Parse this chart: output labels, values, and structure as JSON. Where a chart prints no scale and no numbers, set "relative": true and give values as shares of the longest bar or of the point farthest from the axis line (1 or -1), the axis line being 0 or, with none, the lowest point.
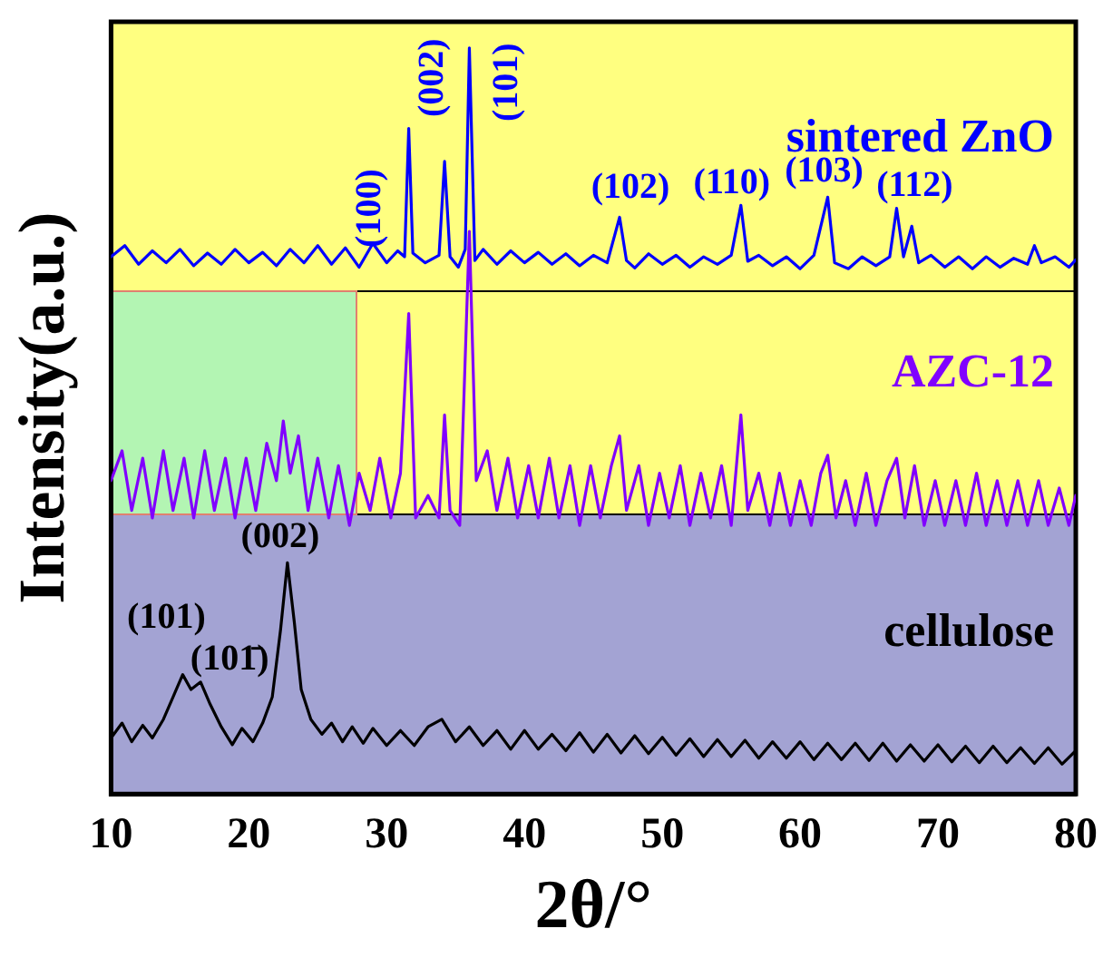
{
  "chart_data": {
    "type": "line",
    "relative": true,
    "xlabel": "2θ/°",
    "ylabel": "Intensity(a.u.)",
    "xlim": [
      10,
      80
    ],
    "xticks": [
      10,
      20,
      30,
      40,
      50,
      60,
      70,
      80
    ],
    "grid": false,
    "legend": false,
    "marker": "none",
    "line_style": "solid",
    "series": [
      {
        "name": "sintered ZnO",
        "color": "#0000ff",
        "x": [
          10,
          11,
          12,
          13,
          14,
          15,
          16,
          17,
          18,
          19,
          20,
          21,
          22,
          23,
          24,
          25,
          26,
          27,
          28,
          29,
          30,
          30.8,
          31.3,
          31.6,
          31.9,
          32.8,
          33.8,
          34.2,
          34.6,
          35.2,
          35.7,
          36.0,
          36.4,
          37,
          38,
          39,
          40,
          41,
          42,
          43,
          44,
          45,
          46,
          46.9,
          47.4,
          48,
          49,
          50,
          51,
          52,
          53,
          54,
          55,
          55.7,
          56.2,
          57,
          58,
          59,
          60,
          61,
          62.0,
          62.5,
          63.5,
          64.5,
          65.5,
          66.5,
          67.0,
          67.5,
          68.1,
          68.6,
          69.5,
          70.5,
          71.5,
          72.5,
          73.5,
          74.5,
          75.5,
          76.5,
          77,
          77.5,
          78.5,
          79.5,
          80
        ],
        "values": [
          0.72,
          0.735,
          0.71,
          0.728,
          0.712,
          0.73,
          0.708,
          0.725,
          0.71,
          0.73,
          0.712,
          0.726,
          0.708,
          0.73,
          0.712,
          0.735,
          0.71,
          0.732,
          0.706,
          0.738,
          0.712,
          0.728,
          0.72,
          0.892,
          0.725,
          0.712,
          0.722,
          0.848,
          0.72,
          0.706,
          0.73,
          1.0,
          0.715,
          0.73,
          0.71,
          0.728,
          0.712,
          0.726,
          0.71,
          0.724,
          0.708,
          0.722,
          0.712,
          0.773,
          0.715,
          0.705,
          0.724,
          0.71,
          0.722,
          0.706,
          0.72,
          0.71,
          0.722,
          0.789,
          0.714,
          0.722,
          0.708,
          0.72,
          0.704,
          0.722,
          0.8,
          0.712,
          0.704,
          0.72,
          0.708,
          0.72,
          0.785,
          0.72,
          0.761,
          0.712,
          0.722,
          0.706,
          0.72,
          0.704,
          0.72,
          0.706,
          0.718,
          0.71,
          0.735,
          0.712,
          0.72,
          0.706,
          0.716
        ]
      },
      {
        "name": "AZC-12",
        "color": "#8000ff",
        "x": [
          10,
          10.8,
          11.5,
          12.3,
          13,
          13.8,
          14.5,
          15.3,
          16,
          16.8,
          17.5,
          18.3,
          19,
          19.8,
          20.5,
          21.3,
          22,
          22.5,
          23,
          23.6,
          24.3,
          25,
          25.8,
          26.5,
          27.3,
          28,
          28.8,
          29.5,
          30.3,
          31,
          31.6,
          32.1,
          33,
          33.8,
          34.2,
          34.6,
          35.3,
          36.0,
          36.5,
          37.3,
          38,
          38.8,
          39.5,
          40.3,
          41,
          41.8,
          42.5,
          43.3,
          44,
          44.8,
          45.5,
          46.3,
          46.9,
          47.4,
          48.3,
          49,
          49.8,
          50.5,
          51.3,
          52,
          52.8,
          53.5,
          54.3,
          55,
          55.7,
          56.2,
          57,
          57.8,
          58.5,
          59.3,
          60,
          60.8,
          61.5,
          62.0,
          62.6,
          63.3,
          64,
          64.8,
          65.5,
          66.3,
          67.0,
          67.6,
          68.3,
          69,
          69.8,
          70.5,
          71.3,
          72,
          72.8,
          73.5,
          74.3,
          75,
          75.8,
          76.5,
          77.3,
          78,
          78.8,
          79.5,
          80
        ],
        "values": [
          0.42,
          0.46,
          0.38,
          0.45,
          0.37,
          0.46,
          0.38,
          0.45,
          0.37,
          0.46,
          0.38,
          0.45,
          0.37,
          0.45,
          0.38,
          0.47,
          0.42,
          0.5,
          0.43,
          0.48,
          0.38,
          0.45,
          0.37,
          0.44,
          0.36,
          0.43,
          0.38,
          0.45,
          0.37,
          0.43,
          0.644,
          0.37,
          0.4,
          0.37,
          0.508,
          0.38,
          0.36,
          0.754,
          0.42,
          0.46,
          0.38,
          0.45,
          0.37,
          0.44,
          0.37,
          0.45,
          0.37,
          0.44,
          0.36,
          0.44,
          0.37,
          0.44,
          0.48,
          0.38,
          0.44,
          0.36,
          0.43,
          0.37,
          0.44,
          0.36,
          0.43,
          0.37,
          0.44,
          0.36,
          0.508,
          0.38,
          0.43,
          0.36,
          0.43,
          0.36,
          0.42,
          0.36,
          0.43,
          0.454,
          0.37,
          0.42,
          0.36,
          0.43,
          0.36,
          0.42,
          0.45,
          0.37,
          0.44,
          0.36,
          0.42,
          0.36,
          0.42,
          0.36,
          0.43,
          0.36,
          0.42,
          0.36,
          0.42,
          0.36,
          0.42,
          0.36,
          0.41,
          0.36,
          0.4
        ]
      },
      {
        "name": "cellulose",
        "color": "#000000",
        "x": [
          10,
          10.8,
          11.5,
          12.3,
          13,
          13.8,
          14.5,
          15.2,
          15.8,
          16.5,
          17.2,
          18,
          18.8,
          19.5,
          20.3,
          21,
          21.7,
          22.3,
          22.8,
          23.3,
          23.8,
          24.5,
          25.3,
          26,
          26.8,
          27.5,
          28.3,
          29,
          30,
          31,
          32,
          33,
          34,
          35,
          36,
          37,
          38,
          39,
          40,
          41,
          42,
          43,
          44,
          45,
          46,
          47,
          48,
          49,
          50,
          51,
          52,
          53,
          54,
          55,
          56,
          57,
          58,
          59,
          60,
          61,
          62,
          63,
          64,
          65,
          66,
          67,
          68,
          69,
          70,
          71,
          72,
          73,
          74,
          75,
          76,
          77,
          78,
          79,
          80
        ],
        "values": [
          0.075,
          0.095,
          0.07,
          0.092,
          0.075,
          0.1,
          0.13,
          0.16,
          0.14,
          0.15,
          0.12,
          0.09,
          0.066,
          0.088,
          0.07,
          0.095,
          0.13,
          0.22,
          0.31,
          0.23,
          0.14,
          0.1,
          0.08,
          0.095,
          0.07,
          0.09,
          0.068,
          0.088,
          0.065,
          0.085,
          0.065,
          0.09,
          0.1,
          0.07,
          0.09,
          0.065,
          0.085,
          0.06,
          0.085,
          0.06,
          0.08,
          0.058,
          0.082,
          0.056,
          0.08,
          0.055,
          0.078,
          0.054,
          0.076,
          0.052,
          0.074,
          0.05,
          0.073,
          0.05,
          0.072,
          0.048,
          0.07,
          0.048,
          0.07,
          0.046,
          0.068,
          0.046,
          0.068,
          0.045,
          0.068,
          0.044,
          0.066,
          0.044,
          0.066,
          0.043,
          0.064,
          0.042,
          0.064,
          0.042,
          0.062,
          0.041,
          0.062,
          0.04,
          0.058
        ]
      }
    ],
    "annotations": [
      {
        "text": "(100)",
        "x": 31.6,
        "y": 0.892
      },
      {
        "text": "(002)",
        "x": 34.2,
        "y": 0.848
      },
      {
        "text": "(101)",
        "x": 36.0,
        "y": 1.0
      },
      {
        "text": "(102)",
        "x": 46.9,
        "y": 0.773
      },
      {
        "text": "(110)",
        "x": 55.7,
        "y": 0.789
      },
      {
        "text": "(103)",
        "x": 62.0,
        "y": 0.8
      },
      {
        "text": "(112)",
        "x": 67.0,
        "y": 0.785
      },
      {
        "text": "(002)",
        "x": 22.8,
        "y": 0.31
      },
      {
        "text": "(101)",
        "x": 15.2,
        "y": 0.16
      },
      {
        "text": "(101̄)",
        "x": 16.5,
        "y": 0.15
      }
    ]
  }
}
